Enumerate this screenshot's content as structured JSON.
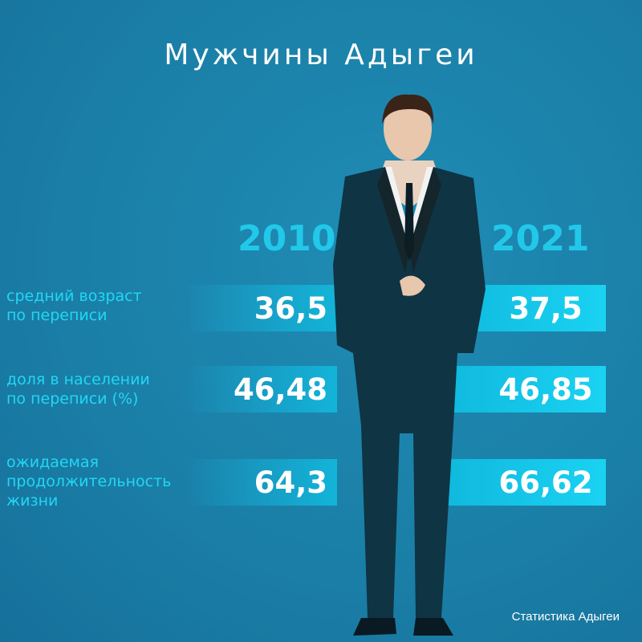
{
  "title": "Мужчины Адыгеи",
  "years": [
    "2010",
    "2021"
  ],
  "rows": [
    {
      "label_line1": "средний возраст",
      "label_line2": "по переписи",
      "label_line3": "",
      "v2010": "36,5",
      "v2021": "37,5"
    },
    {
      "label_line1": "доля в населении",
      "label_line2": "по переписи (%)",
      "label_line3": "",
      "v2010": "46,48",
      "v2021": "46,85"
    },
    {
      "label_line1": "ожидаемая",
      "label_line2": "продолжительность",
      "label_line3": "жизни",
      "v2010": "64,3",
      "v2021": "66,62"
    }
  ],
  "credit": "Статистика Адыгеи",
  "colors": {
    "background": "#1b82aa",
    "accent": "#22d6f5",
    "bar": "#13b4d8",
    "suit": "#0f3443"
  }
}
